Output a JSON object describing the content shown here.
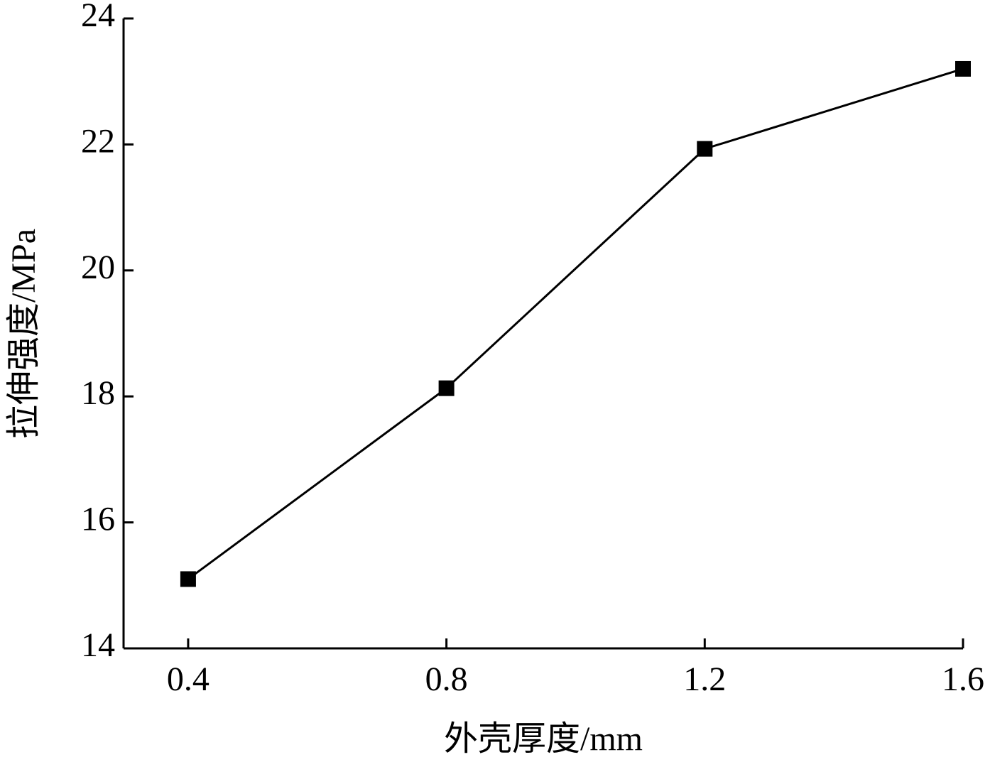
{
  "chart_data": {
    "type": "line",
    "x_label": "外壳厚度/mm",
    "y_label": "拉伸强度/MPa",
    "x": [
      0.4,
      0.8,
      1.2,
      1.6
    ],
    "series": [
      {
        "color": "#000000",
        "values": [
          15.1,
          18.13,
          21.93,
          23.2
        ]
      }
    ],
    "xlim": [
      0.3,
      1.6
    ],
    "xticks": [
      0.4,
      0.8,
      1.2,
      1.6
    ],
    "ylim": [
      14,
      24
    ],
    "yticks": [
      14,
      16,
      18,
      20,
      22,
      24
    ],
    "grid": false,
    "marker": "square"
  }
}
